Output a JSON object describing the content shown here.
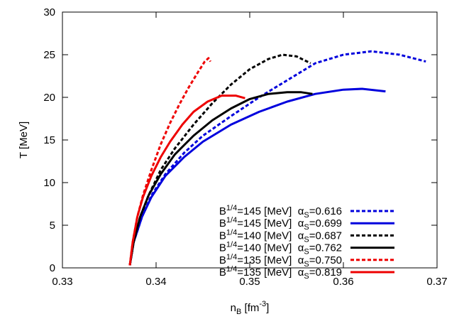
{
  "chart_data": {
    "type": "line",
    "xlabel": {
      "main": "n",
      "sub": "B",
      "unit_pre": " [fm",
      "unit_sup": "-3",
      "unit_post": "]"
    },
    "ylabel": "T [MeV]",
    "xlim": [
      0.33,
      0.37
    ],
    "ylim": [
      0,
      30
    ],
    "x_ticks": [
      "0.33",
      "0.34",
      "0.35",
      "0.36",
      "0.37"
    ],
    "y_ticks": [
      "0",
      "5",
      "10",
      "15",
      "20",
      "25",
      "30"
    ],
    "grid": false,
    "legend_position": "bottom-right",
    "series": [
      {
        "name": "B1/4=145 [MeV] αS=0.616",
        "legend": {
          "b": "B",
          "b_sup": "1/4",
          "b_rest": "=145 [MeV]",
          "alpha": "α",
          "alpha_sub": "S",
          "alpha_val": "=0.616"
        },
        "color": "#0000dd",
        "dashed": true,
        "x": [
          0.3372,
          0.3376,
          0.3385,
          0.3395,
          0.341,
          0.343,
          0.345,
          0.348,
          0.351,
          0.354,
          0.357,
          0.36,
          0.363,
          0.366,
          0.3688
        ],
        "y": [
          0.3,
          3.0,
          6.0,
          8.5,
          11.0,
          13.5,
          15.5,
          17.8,
          20.0,
          22.0,
          24.0,
          25.0,
          25.4,
          25.0,
          24.2
        ]
      },
      {
        "name": "B1/4=145 [MeV] αS=0.699",
        "legend": {
          "b": "B",
          "b_sup": "1/4",
          "b_rest": "=145 [MeV]",
          "alpha": "α",
          "alpha_sub": "S",
          "alpha_val": "=0.699"
        },
        "color": "#0000dd",
        "dashed": false,
        "x": [
          0.3372,
          0.3376,
          0.3385,
          0.3395,
          0.341,
          0.343,
          0.345,
          0.348,
          0.351,
          0.354,
          0.357,
          0.36,
          0.362,
          0.3645
        ],
        "y": [
          0.3,
          3.0,
          6.0,
          8.3,
          10.8,
          13.0,
          14.8,
          16.8,
          18.3,
          19.5,
          20.4,
          20.9,
          21.0,
          20.7
        ]
      },
      {
        "name": "B1/4=140 [MeV] αS=0.687",
        "legend": {
          "b": "B",
          "b_sup": "1/4",
          "b_rest": "=140 [MeV]",
          "alpha": "α",
          "alpha_sub": "S",
          "alpha_val": "=0.687"
        },
        "color": "#000000",
        "dashed": true,
        "x": [
          0.3372,
          0.3376,
          0.3383,
          0.3392,
          0.3405,
          0.342,
          0.344,
          0.346,
          0.348,
          0.35,
          0.352,
          0.3535,
          0.355,
          0.3565
        ],
        "y": [
          0.3,
          3.0,
          6.0,
          8.5,
          11.5,
          14.0,
          16.8,
          19.3,
          21.5,
          23.3,
          24.5,
          25.0,
          24.8,
          24.0
        ]
      },
      {
        "name": "B1/4=140 [MeV] αS=0.762",
        "legend": {
          "b": "B",
          "b_sup": "1/4",
          "b_rest": "=140 [MeV]",
          "alpha": "α",
          "alpha_sub": "S",
          "alpha_val": "=0.762"
        },
        "color": "#000000",
        "dashed": false,
        "x": [
          0.3372,
          0.3376,
          0.3383,
          0.3392,
          0.3405,
          0.342,
          0.344,
          0.346,
          0.348,
          0.35,
          0.352,
          0.354,
          0.3555,
          0.3567
        ],
        "y": [
          0.3,
          3.0,
          6.0,
          8.5,
          11.0,
          13.3,
          15.5,
          17.3,
          18.7,
          19.8,
          20.4,
          20.6,
          20.6,
          20.4
        ]
      },
      {
        "name": "B1/4=135 [MeV] αS=0.750",
        "legend": {
          "b": "B",
          "b_sup": "1/4",
          "b_rest": "=135 [MeV]",
          "alpha": "α",
          "alpha_sub": "S",
          "alpha_val": "=0.750"
        },
        "color": "#ee0000",
        "dashed": true,
        "x": [
          0.3372,
          0.3375,
          0.338,
          0.3386,
          0.3395,
          0.3405,
          0.3415,
          0.3425,
          0.3435,
          0.3445,
          0.3452,
          0.3456,
          0.3458
        ],
        "y": [
          0.3,
          3.0,
          6.0,
          8.5,
          11.5,
          14.5,
          17.0,
          19.2,
          21.2,
          23.0,
          24.2,
          24.6,
          24.2
        ]
      },
      {
        "name": "B1/4=135 [MeV] αS=0.819",
        "legend": {
          "b": "B",
          "b_sup": "1/4",
          "b_rest": "=135 [MeV]",
          "alpha": "α",
          "alpha_sub": "S",
          "alpha_val": "=0.819"
        },
        "color": "#ee0000",
        "dashed": false,
        "x": [
          0.3372,
          0.3375,
          0.338,
          0.3386,
          0.3395,
          0.3405,
          0.3415,
          0.3428,
          0.344,
          0.3455,
          0.347,
          0.3485,
          0.3495
        ],
        "y": [
          0.3,
          3.0,
          6.0,
          8.3,
          10.8,
          13.0,
          14.8,
          16.8,
          18.3,
          19.5,
          20.2,
          20.2,
          19.9
        ]
      }
    ]
  }
}
